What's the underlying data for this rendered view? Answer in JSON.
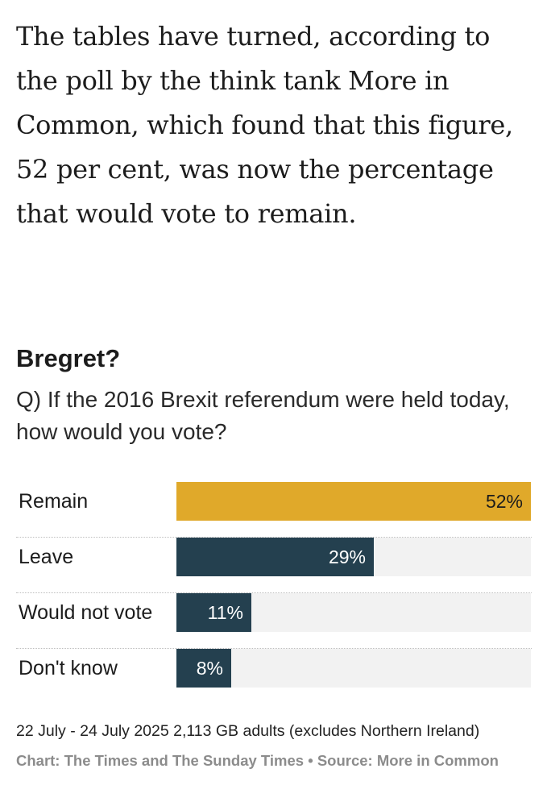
{
  "article": {
    "paragraph": "The tables have turned, according to the poll by the think tank More in Common, which found that this figure, 52 per cent, was now the percentage that would vote to remain."
  },
  "colors": {
    "highlight_bar": "#e0a92a",
    "default_bar": "#24404f",
    "track": "#f2f2f2",
    "highlight_label": "#1c1c1c",
    "default_label": "#ffffff"
  },
  "chart_data": {
    "type": "bar",
    "orientation": "horizontal",
    "title": "Bregret?",
    "subtitle": "Q) If the 2016 Brexit referendum were held today, how would you vote?",
    "categories": [
      "Remain",
      "Leave",
      "Would not vote",
      "Don't know"
    ],
    "values": [
      52,
      29,
      11,
      8
    ],
    "value_labels": [
      "52%",
      "29%",
      "11%",
      "8%"
    ],
    "highlight": [
      true,
      false,
      false,
      false
    ],
    "xlim": [
      0,
      52
    ],
    "grid": false,
    "note": "22 July - 24 July 2025 2,113 GB adults (excludes Northern Ireland)",
    "credit": "Chart: The Times and The Sunday Times • Source: More in Common"
  }
}
